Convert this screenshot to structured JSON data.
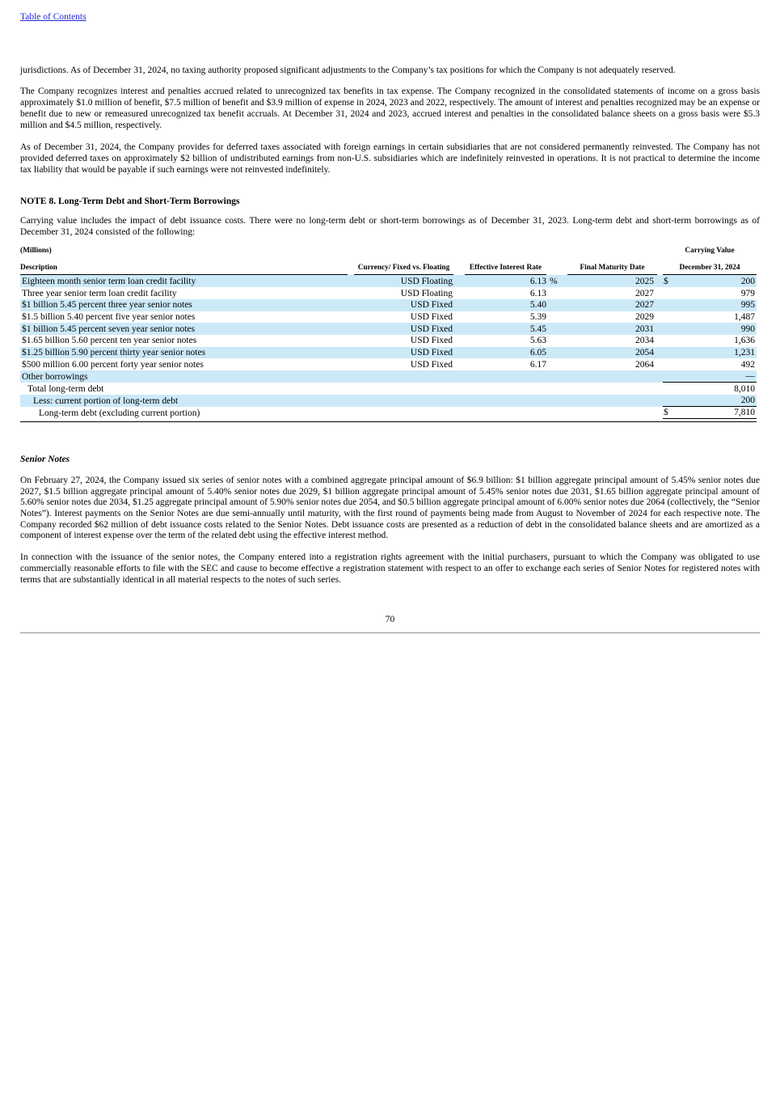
{
  "colors": {
    "row_shade": "#cce9f8",
    "link": "#2626d8"
  },
  "page": {
    "toc_link": "Table of Contents",
    "page_number": "70"
  },
  "paragraphs": {
    "p1": "jurisdictions. As of December 31, 2024, no taxing authority proposed significant adjustments to the Company’s tax positions for which the Company is not adequately reserved.",
    "p2": "The Company recognizes interest and penalties accrued related to unrecognized tax benefits in tax expense. The Company recognized in the consolidated statements of income on a gross basis approximately $1.0 million of benefit, $7.5 million of benefit and $3.9 million of expense in 2024, 2023 and 2022, respectively. The amount of interest and penalties recognized may be an expense or benefit due to new or remeasured unrecognized tax benefit accruals. At December 31, 2024 and 2023, accrued interest and penalties in the consolidated balance sheets on a gross basis were $5.3 million and $4.5 million, respectively.",
    "p3": "As of December 31, 2024, the Company provides for deferred taxes associated with foreign earnings in certain subsidiaries that are not considered permanently reinvested. The Company has not provided deferred taxes on approximately $2 billion of undistributed earnings from non-U.S. subsidiaries which are indefinitely reinvested in operations. It is not practical to determine the income tax liability that would be payable if such earnings were not reinvested indefinitely.",
    "note8_heading": "NOTE 8. Long-Term Debt and Short-Term Borrowings",
    "note8_intro": "Carrying value includes the impact of debt issuance costs. There were no long-term debt or short-term borrowings as of December 31, 2023. Long-term debt and short-term borrowings as of December 31, 2024 consisted of the following:",
    "senior_notes_heading": "Senior Notes",
    "sn_p1": "On February 27, 2024, the Company issued six series of senior notes with a combined aggregate principal amount of $6.9 billion: $1 billion aggregate principal amount of 5.45% senior notes due 2027, $1.5 billion aggregate principal amount of 5.40% senior notes due 2029, $1 billion aggregate principal amount of 5.45% senior notes due 2031, $1.65 billion aggregate principal amount of 5.60% senior notes due 2034, $1.25 aggregate principal amount of 5.90% senior notes due 2054, and $0.5 billion aggregate principal amount of 6.00% senior notes due 2064 (collectively, the “Senior Notes”). Interest payments on the Senior Notes are due semi-annually until maturity, with the first round of payments being made from August to November of 2024 for each respective note. The Company recorded $62 million of debt issuance costs related to the Senior Notes. Debt issuance costs are presented as a reduction of debt in the consolidated balance sheets and are amortized as a component of interest expense over the term of the related debt using the effective interest method.",
    "sn_p2": "In connection with the issuance of the senior notes, the Company entered into a registration rights agreement with the initial purchasers, pursuant to which the Company was obligated to use commercially reasonable efforts to file with the SEC and cause to become effective a registration statement with respect to an offer to exchange each series of Senior Notes for registered notes with terms that are substantially identical in all material respects to the notes of such series."
  },
  "table": {
    "millions_label": "(Millions)",
    "carrying_value_label": "Carrying Value",
    "headers": {
      "description": "Description",
      "currency": "Currency/ Fixed vs. Floating",
      "rate": "Effective Interest Rate",
      "maturity": "Final Maturity Date",
      "date": "December 31, 2024"
    },
    "rows": [
      {
        "desc": "Eighteen month senior term loan credit facility",
        "currency": "USD Floating",
        "rate": "6.13",
        "pct": "%",
        "maturity": "2025",
        "dollar": "$",
        "amount": "200",
        "indent": 0,
        "rule": false,
        "final": false
      },
      {
        "desc": "Three year senior term loan credit facility",
        "currency": "USD Floating",
        "rate": "6.13",
        "pct": "",
        "maturity": "2027",
        "dollar": "",
        "amount": "979",
        "indent": 0,
        "rule": false,
        "final": false
      },
      {
        "desc": "$1 billion 5.45 percent three year senior notes",
        "currency": "USD Fixed",
        "rate": "5.40",
        "pct": "",
        "maturity": "2027",
        "dollar": "",
        "amount": "995",
        "indent": 0,
        "rule": false,
        "final": false
      },
      {
        "desc": "$1.5 billion 5.40 percent five year senior notes",
        "currency": "USD Fixed",
        "rate": "5.39",
        "pct": "",
        "maturity": "2029",
        "dollar": "",
        "amount": "1,487",
        "indent": 0,
        "rule": false,
        "final": false
      },
      {
        "desc": "$1 billion 5.45 percent seven year senior notes",
        "currency": "USD Fixed",
        "rate": "5.45",
        "pct": "",
        "maturity": "2031",
        "dollar": "",
        "amount": "990",
        "indent": 0,
        "rule": false,
        "final": false
      },
      {
        "desc": "$1.65 billion 5.60 percent ten year senior notes",
        "currency": "USD Fixed",
        "rate": "5.63",
        "pct": "",
        "maturity": "2034",
        "dollar": "",
        "amount": "1,636",
        "indent": 0,
        "rule": false,
        "final": false
      },
      {
        "desc": "$1.25 billion 5.90 percent thirty year senior notes",
        "currency": "USD Fixed",
        "rate": "6.05",
        "pct": "",
        "maturity": "2054",
        "dollar": "",
        "amount": "1,231",
        "indent": 0,
        "rule": false,
        "final": false
      },
      {
        "desc": "$500 million 6.00 percent forty year senior notes",
        "currency": "USD Fixed",
        "rate": "6.17",
        "pct": "",
        "maturity": "2064",
        "dollar": "",
        "amount": "492",
        "indent": 0,
        "rule": false,
        "final": false
      },
      {
        "desc": "Other borrowings",
        "currency": "",
        "rate": "",
        "pct": "",
        "maturity": "",
        "dollar": "",
        "amount": "—",
        "indent": 0,
        "rule": true,
        "final": false
      },
      {
        "desc": "Total long-term debt",
        "currency": "",
        "rate": "",
        "pct": "",
        "maturity": "",
        "dollar": "",
        "amount": "8,010",
        "indent": 1,
        "rule": false,
        "final": false
      },
      {
        "desc": "Less: current portion of long-term debt",
        "currency": "",
        "rate": "",
        "pct": "",
        "maturity": "",
        "dollar": "",
        "amount": "200",
        "indent": 2,
        "rule": true,
        "final": false
      },
      {
        "desc": "Long-term debt (excluding current portion)",
        "currency": "",
        "rate": "",
        "pct": "",
        "maturity": "",
        "dollar": "$",
        "amount": "7,810",
        "indent": 3,
        "rule": false,
        "final": true
      }
    ]
  }
}
